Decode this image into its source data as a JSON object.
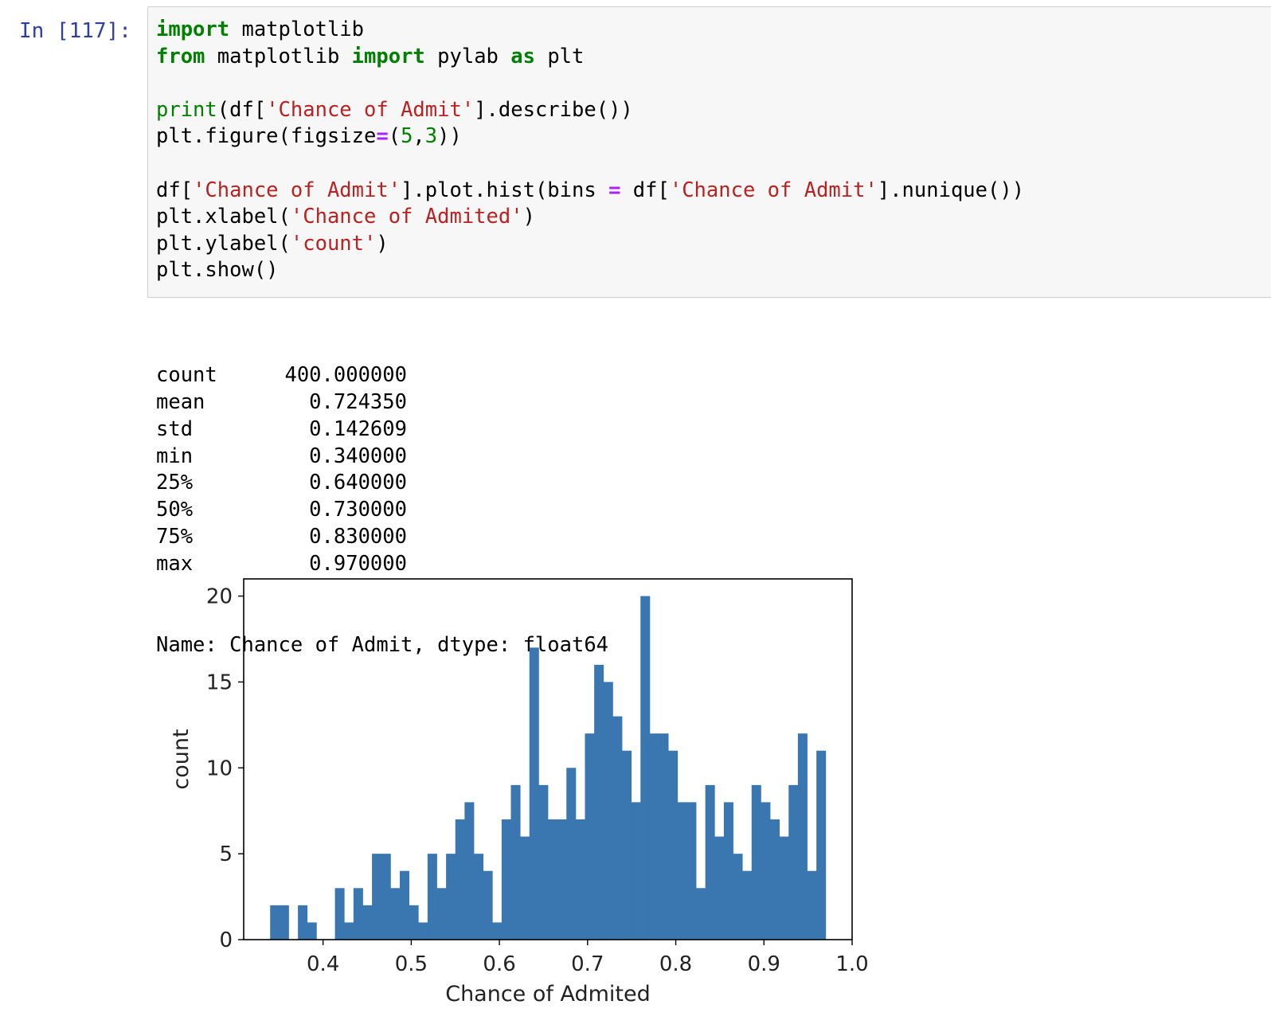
{
  "cell": {
    "prompt": "In [117]:",
    "code_lines": [
      [
        {
          "t": "import",
          "c": "kw"
        },
        {
          "t": " matplotlib",
          "c": ""
        }
      ],
      [
        {
          "t": "from",
          "c": "kw"
        },
        {
          "t": " matplotlib ",
          "c": ""
        },
        {
          "t": "import",
          "c": "kw"
        },
        {
          "t": " pylab ",
          "c": ""
        },
        {
          "t": "as",
          "c": "kw"
        },
        {
          "t": " plt",
          "c": ""
        }
      ],
      [],
      [
        {
          "t": "print",
          "c": "bi"
        },
        {
          "t": "(df[",
          "c": ""
        },
        {
          "t": "'Chance of Admit'",
          "c": "st"
        },
        {
          "t": "].describe())",
          "c": ""
        }
      ],
      [
        {
          "t": "plt.figure(figsize",
          "c": ""
        },
        {
          "t": "=",
          "c": "op"
        },
        {
          "t": "(",
          "c": ""
        },
        {
          "t": "5",
          "c": "nm"
        },
        {
          "t": ",",
          "c": ""
        },
        {
          "t": "3",
          "c": "nm"
        },
        {
          "t": "))",
          "c": ""
        }
      ],
      [],
      [
        {
          "t": "df[",
          "c": ""
        },
        {
          "t": "'Chance of Admit'",
          "c": "st"
        },
        {
          "t": "].plot.hist(bins ",
          "c": ""
        },
        {
          "t": "=",
          "c": "op"
        },
        {
          "t": " df[",
          "c": ""
        },
        {
          "t": "'Chance of Admit'",
          "c": "st"
        },
        {
          "t": "].nunique())",
          "c": ""
        }
      ],
      [
        {
          "t": "plt.xlabel(",
          "c": ""
        },
        {
          "t": "'Chance of Admited'",
          "c": "st"
        },
        {
          "t": ")",
          "c": ""
        }
      ],
      [
        {
          "t": "plt.ylabel(",
          "c": ""
        },
        {
          "t": "'count'",
          "c": "st"
        },
        {
          "t": ")",
          "c": ""
        }
      ],
      [
        {
          "t": "plt.show()",
          "c": ""
        }
      ]
    ]
  },
  "output": {
    "describe": [
      {
        "label": "count",
        "value": "400.000000"
      },
      {
        "label": "mean",
        "value": "0.724350"
      },
      {
        "label": "std",
        "value": "0.142609"
      },
      {
        "label": "min",
        "value": "0.340000"
      },
      {
        "label": "25%",
        "value": "0.640000"
      },
      {
        "label": "50%",
        "value": "0.730000"
      },
      {
        "label": "75%",
        "value": "0.830000"
      },
      {
        "label": "max",
        "value": "0.970000"
      }
    ],
    "footer": "Name: Chance of Admit, dtype: float64"
  },
  "chart_data": {
    "type": "bar",
    "title": "",
    "xlabel": "Chance of Admited",
    "ylabel": "count",
    "xlim": [
      0.31,
      1.0
    ],
    "ylim": [
      0,
      21
    ],
    "xticks": [
      "0.4",
      "0.5",
      "0.6",
      "0.7",
      "0.8",
      "0.9",
      "1.0"
    ],
    "yticks": [
      "0",
      "5",
      "10",
      "15",
      "20"
    ],
    "bar_color": "#3a76af",
    "bin_start": 0.34,
    "bin_end": 0.97,
    "counts": [
      2,
      2,
      0,
      2,
      1,
      0,
      0,
      3,
      1,
      3,
      2,
      5,
      5,
      3,
      4,
      2,
      1,
      5,
      3,
      5,
      7,
      8,
      5,
      4,
      1,
      7,
      9,
      6,
      17,
      9,
      7,
      7,
      10,
      7,
      12,
      16,
      15,
      13,
      11,
      8,
      20,
      12,
      12,
      11,
      8,
      8,
      3,
      9,
      6,
      8,
      5,
      4,
      9,
      8,
      7,
      6,
      9,
      12,
      4,
      11
    ]
  }
}
